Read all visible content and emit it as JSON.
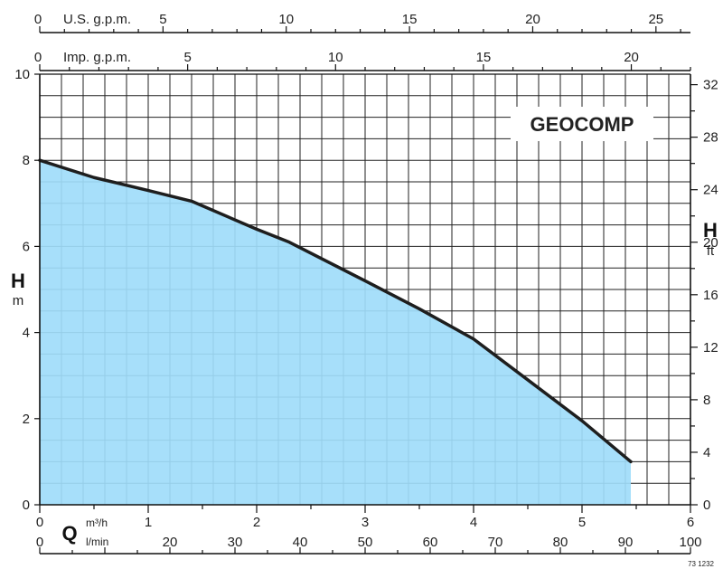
{
  "chart_data": {
    "type": "area",
    "title": "GEOCOMP",
    "colors": {
      "fill": "#a0dcfa",
      "line": "#1e1e1e",
      "grid": "#222222"
    },
    "grid": true,
    "x": {
      "range": [
        0,
        6
      ],
      "ticks": [
        0,
        1,
        2,
        3,
        4,
        5,
        6
      ],
      "primary_unit": "m³/h",
      "symbol": "Q",
      "secondary": {
        "unit": "l/min",
        "range": [
          0,
          100
        ],
        "ticks": [
          0,
          20,
          30,
          40,
          50,
          60,
          70,
          80,
          90,
          100
        ]
      }
    },
    "y": {
      "range": [
        0,
        10
      ],
      "ticks": [
        0,
        2,
        4,
        6,
        8,
        10
      ],
      "symbol": "H",
      "unit": "m",
      "secondary": {
        "symbol": "H",
        "unit": "ft",
        "range": [
          0,
          32.8
        ],
        "ticks": [
          0,
          4,
          8,
          12,
          16,
          20,
          24,
          28,
          32
        ]
      }
    },
    "top_axes": [
      {
        "label": "U.S. g.p.m.",
        "range": [
          0,
          26.4
        ],
        "ticks": [
          0,
          5,
          10,
          15,
          20,
          25
        ]
      },
      {
        "label": "Imp. g.p.m.",
        "range": [
          0,
          22
        ],
        "ticks": [
          0,
          5,
          10,
          15,
          20
        ]
      }
    ],
    "series": [
      {
        "x": [
          0,
          0.5,
          1.0,
          1.4,
          2.0,
          2.3,
          3.0,
          3.5,
          4.0,
          4.5,
          5.0,
          5.45
        ],
        "y": [
          8.0,
          7.6,
          7.3,
          7.05,
          6.4,
          6.1,
          5.2,
          4.55,
          3.85,
          2.9,
          1.95,
          1.0
        ]
      }
    ]
  },
  "footer": {
    "code": "73 1232"
  }
}
